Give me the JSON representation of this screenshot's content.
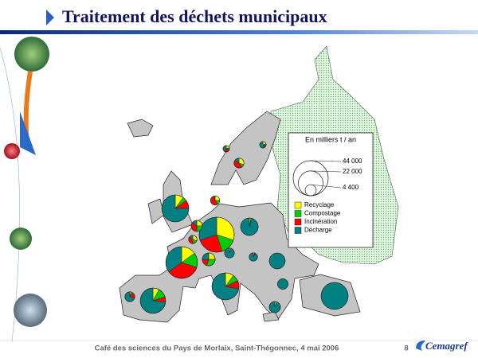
{
  "header": {
    "title": "Traitement des déchets municipaux"
  },
  "chart_data": {
    "type": "pie-map",
    "legend": {
      "title": "En milliers t / an",
      "sizes": [
        {
          "value": 44000,
          "label": "44 000"
        },
        {
          "value": 22000,
          "label": "22 000"
        },
        {
          "value": 4400,
          "label": "4 400"
        }
      ],
      "categories": [
        "Recyclage",
        "Compostage",
        "Incinération",
        "Décharge"
      ],
      "colors": [
        "#ffff00",
        "#00cc00",
        "#ff0000",
        "#008080"
      ]
    },
    "pies": [
      {
        "total": 26000,
        "values": [
          10,
          5,
          10,
          75
        ]
      },
      {
        "total": 44000,
        "values": [
          30,
          15,
          25,
          30
        ]
      },
      {
        "total": 36000,
        "values": [
          15,
          15,
          35,
          35
        ]
      },
      {
        "total": 23000,
        "values": [
          8,
          12,
          7,
          73
        ]
      },
      {
        "total": 26000,
        "values": [
          10,
          8,
          10,
          72
        ]
      },
      {
        "total": 11000,
        "values": [
          3,
          2,
          0,
          95
        ]
      },
      {
        "total": 26000,
        "values": [
          0,
          0,
          0,
          100
        ]
      },
      {
        "total": 4400,
        "values": [
          25,
          25,
          35,
          15
        ]
      },
      {
        "total": 2500,
        "values": [
          30,
          20,
          35,
          15
        ]
      },
      {
        "total": 3500,
        "values": [
          30,
          10,
          45,
          15
        ]
      },
      {
        "total": 1500,
        "values": [
          20,
          10,
          30,
          40
        ]
      },
      {
        "total": 1500,
        "values": [
          20,
          10,
          10,
          60
        ]
      },
      {
        "total": 9000,
        "values": [
          0,
          0,
          0,
          100
        ]
      },
      {
        "total": 6000,
        "values": [
          25,
          30,
          20,
          25
        ]
      },
      {
        "total": 3500,
        "values": [
          5,
          0,
          0,
          95
        ]
      },
      {
        "total": 2500,
        "values": [
          5,
          0,
          5,
          90
        ]
      },
      {
        "total": 3500,
        "values": [
          5,
          5,
          20,
          70
        ]
      },
      {
        "total": 4500,
        "values": [
          5,
          0,
          0,
          95
        ]
      },
      {
        "total": 3000,
        "values": [
          25,
          15,
          55,
          5
        ]
      },
      {
        "total": 4000,
        "values": [
          0,
          0,
          0,
          100
        ]
      }
    ]
  },
  "footer": {
    "text": "Café des sciences du Pays de Morlaix, Saint-Thégonnec, 4 mai 2006",
    "page": 8,
    "logo": "Cemagref"
  }
}
